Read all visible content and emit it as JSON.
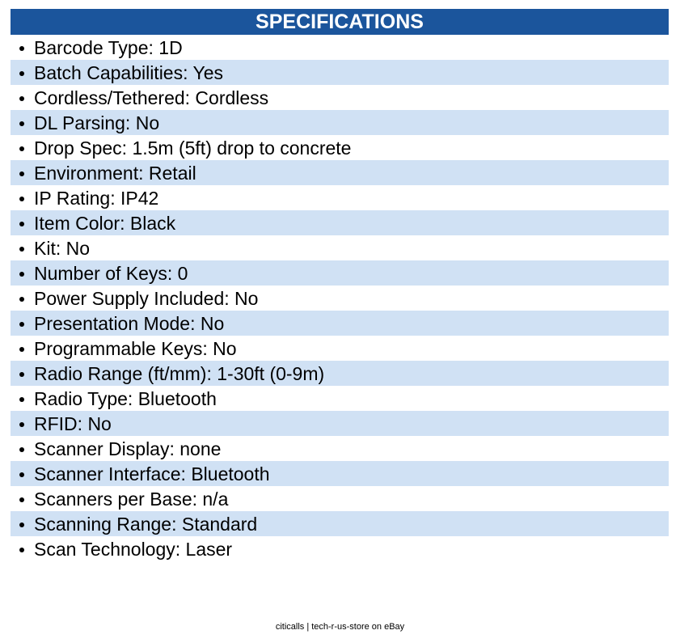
{
  "header": {
    "title": "SPECIFICATIONS"
  },
  "items": [
    "Barcode Type: 1D",
    "Batch Capabilities: Yes",
    "Cordless/Tethered: Cordless",
    "DL Parsing: No",
    "Drop Spec: 1.5m (5ft) drop to concrete",
    "Environment: Retail",
    "IP Rating: IP42",
    "Item Color: Black",
    "Kit: No",
    "Number of Keys: 0",
    "Power Supply Included: No",
    "Presentation Mode: No",
    "Programmable Keys: No",
    "Radio Range (ft/mm): 1-30ft (0-9m)",
    "Radio Type: Bluetooth",
    "RFID: No",
    "Scanner Display: none",
    "Scanner Interface: Bluetooth",
    "Scanners per Base: n/a",
    "Scanning Range: Standard",
    "Scan Technology: Laser"
  ],
  "footer": "citicalls | tech-r-us-store on eBay"
}
